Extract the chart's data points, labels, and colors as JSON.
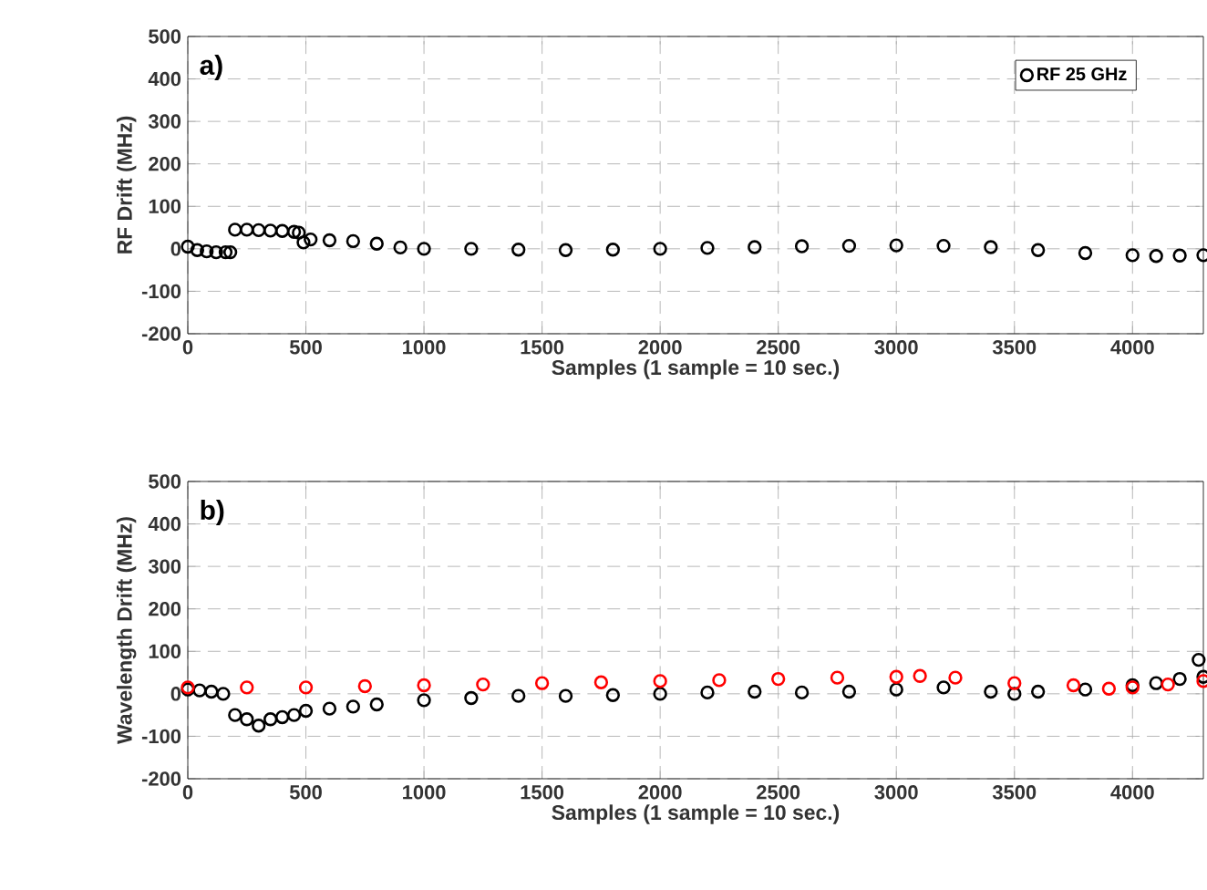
{
  "chart_data": [
    {
      "type": "scatter",
      "xlabel": "Samples (1 sample = 10 sec.)",
      "ylabel": "RF Drift (MHz)",
      "annotations": [
        "a)"
      ],
      "xlim": [
        0,
        4300
      ],
      "ylim": [
        -200,
        500
      ],
      "xticks": [
        0,
        500,
        1000,
        1500,
        2000,
        2500,
        3000,
        3500,
        4000
      ],
      "yticks": [
        -200,
        -100,
        0,
        100,
        200,
        300,
        400,
        500
      ],
      "grid": true,
      "marker": "circle",
      "legend": "top right",
      "series": [
        {
          "name": "RF 25 GHz",
          "color": "#000000",
          "x": [
            0,
            40,
            80,
            120,
            160,
            180,
            200,
            250,
            300,
            350,
            400,
            450,
            470,
            490,
            520,
            600,
            700,
            800,
            900,
            1000,
            1200,
            1400,
            1600,
            1800,
            2000,
            2200,
            2400,
            2600,
            2800,
            3000,
            3200,
            3400,
            3600,
            3800,
            4000,
            4100,
            4200,
            4300
          ],
          "values": [
            5,
            -3,
            -6,
            -8,
            -8,
            -8,
            45,
            45,
            44,
            43,
            42,
            40,
            38,
            15,
            22,
            20,
            18,
            12,
            3,
            0,
            0,
            -2,
            -3,
            -2,
            0,
            2,
            4,
            6,
            7,
            8,
            7,
            4,
            -3,
            -10,
            -15,
            -17,
            -16,
            -15
          ]
        }
      ]
    },
    {
      "type": "scatter",
      "xlabel": "Samples (1 sample = 10 sec.)",
      "ylabel": "Wavelength Drift (MHz)",
      "annotations": [
        "b)"
      ],
      "xlim": [
        0,
        4300
      ],
      "ylim": [
        -200,
        500
      ],
      "xticks": [
        0,
        500,
        1000,
        1500,
        2000,
        2500,
        3000,
        3500,
        4000
      ],
      "yticks": [
        -200,
        -100,
        0,
        100,
        200,
        300,
        400,
        500
      ],
      "grid": true,
      "marker": "circle",
      "series": [
        {
          "color": "#000000",
          "x": [
            0,
            50,
            100,
            150,
            200,
            250,
            300,
            350,
            400,
            450,
            500,
            600,
            700,
            800,
            1000,
            1200,
            1400,
            1600,
            1800,
            2000,
            2200,
            2400,
            2600,
            2800,
            3000,
            3200,
            3400,
            3500,
            3600,
            3800,
            4000,
            4100,
            4200,
            4280,
            4300
          ],
          "values": [
            10,
            8,
            5,
            0,
            -50,
            -60,
            -75,
            -60,
            -55,
            -50,
            -40,
            -35,
            -30,
            -25,
            -15,
            -10,
            -5,
            -5,
            -3,
            0,
            3,
            5,
            3,
            5,
            10,
            15,
            5,
            0,
            5,
            10,
            20,
            25,
            35,
            80,
            40
          ]
        },
        {
          "color": "#ff0000",
          "x": [
            0,
            250,
            500,
            750,
            1000,
            1250,
            1500,
            1750,
            2000,
            2250,
            2500,
            2750,
            3000,
            3100,
            3250,
            3500,
            3750,
            3900,
            4000,
            4150,
            4300
          ],
          "values": [
            15,
            15,
            15,
            18,
            20,
            22,
            25,
            27,
            30,
            32,
            35,
            38,
            40,
            42,
            38,
            25,
            20,
            12,
            15,
            22,
            30
          ]
        }
      ]
    }
  ]
}
